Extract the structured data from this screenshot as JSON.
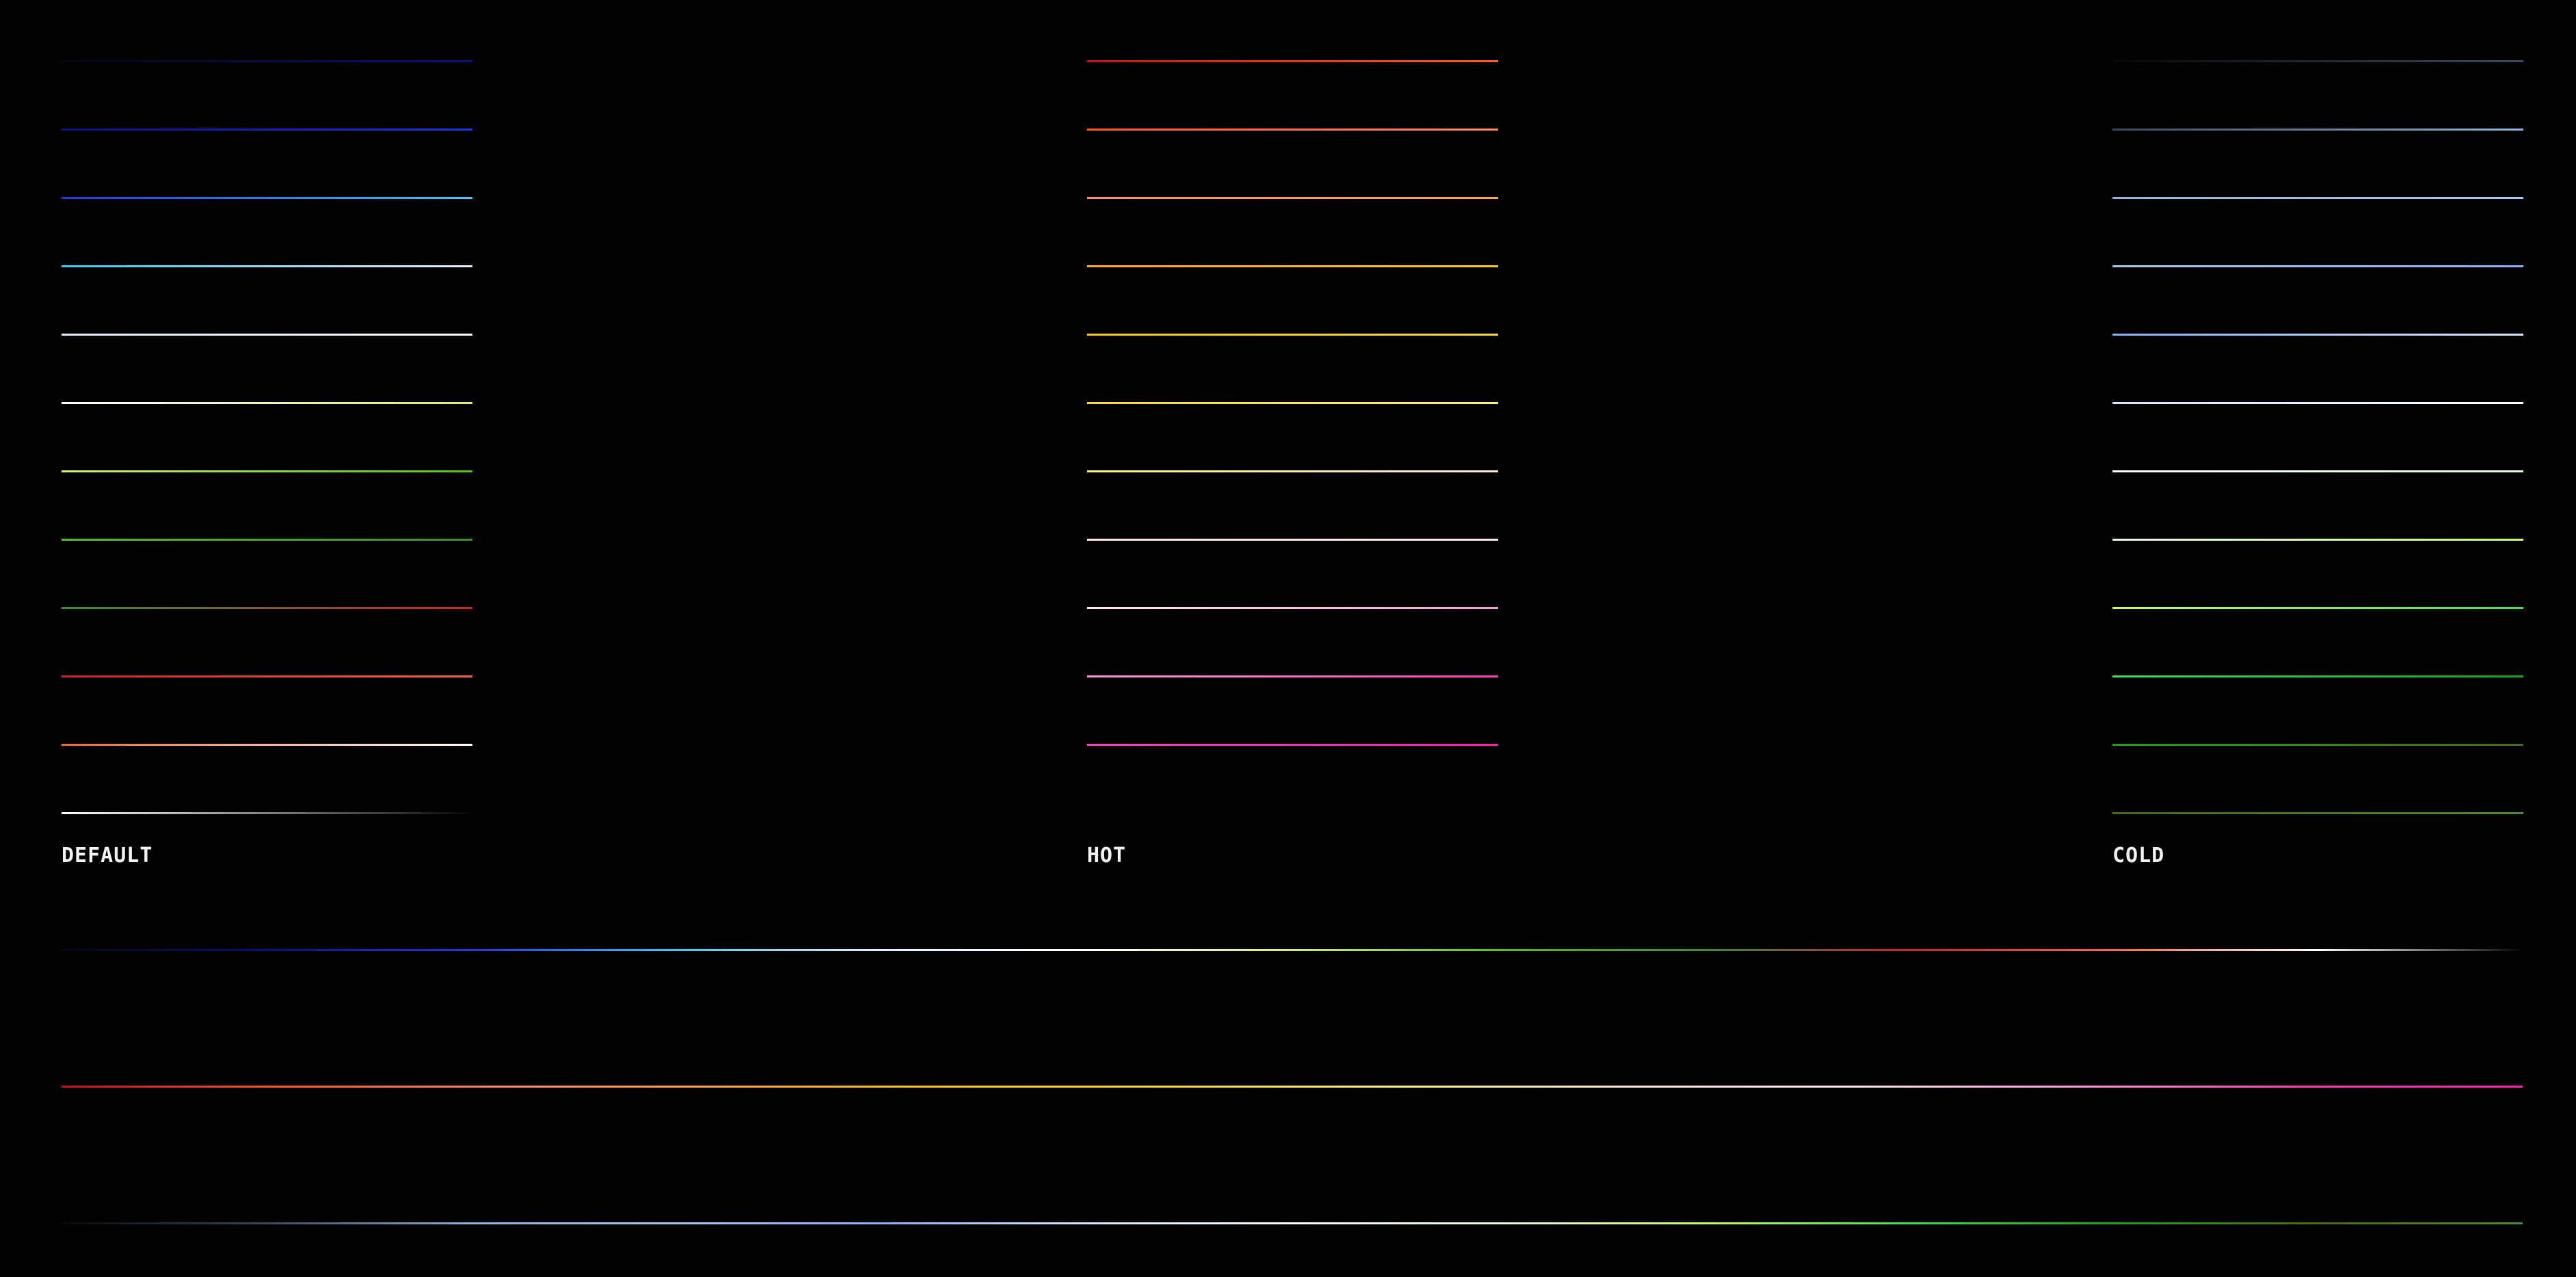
{
  "panels": [
    {
      "name": "default",
      "label": "DEFAULT",
      "colors": [
        "#040612",
        "#081378",
        "#1b38e4",
        "#3fc8f4",
        "#e8f0ff",
        "#ffffff",
        "#d8f070",
        "#54c020",
        "#3f8f2f",
        "#c8242a",
        "#f06a3a",
        "#ffffff",
        "#050505"
      ]
    },
    {
      "name": "hot",
      "label": "HOT",
      "colors": [
        "#c8101a",
        "#ff5a2a",
        "#ff8a6a",
        "#ffa640",
        "#ffc81a",
        "#ffd840",
        "#fff080",
        "#ffe8d8",
        "#ffe8f0",
        "#ff9ad8",
        "#ff40b8",
        "#ff20b0"
      ]
    },
    {
      "name": "cold",
      "label": "COLD",
      "colors": [
        "#070707",
        "#3a4a5a",
        "#8ab6e0",
        "#a8c8f0",
        "#8ab0ff",
        "#d8e8ff",
        "#ffffff",
        "#e8f8e8",
        "#c8ff60",
        "#40e050",
        "#20a020",
        "#4a6a1a",
        "#4a8a3a"
      ]
    }
  ],
  "strips": [
    {
      "name": "default-strip",
      "colors": [
        "#040612",
        "#081378",
        "#1b38e4",
        "#3fc8f4",
        "#e8f0ff",
        "#ffffff",
        "#d8f070",
        "#54c020",
        "#3f8f2f",
        "#c8242a",
        "#f06a3a",
        "#ffffff",
        "#050505"
      ]
    },
    {
      "name": "hot-strip",
      "colors": [
        "#c8101a",
        "#ff5a2a",
        "#ff8a6a",
        "#ffa640",
        "#ffc81a",
        "#ffd840",
        "#fff080",
        "#ffe8d8",
        "#ffe8f0",
        "#ff9ad8",
        "#ff40b8",
        "#ff20b0"
      ]
    },
    {
      "name": "cold-strip",
      "colors": [
        "#070707",
        "#3a4a5a",
        "#8ab6e0",
        "#a8c8f0",
        "#8ab0ff",
        "#d8e8ff",
        "#ffffff",
        "#e8f8e8",
        "#c8ff60",
        "#40e050",
        "#20a020",
        "#4a6a1a",
        "#4a8a3a"
      ]
    }
  ]
}
